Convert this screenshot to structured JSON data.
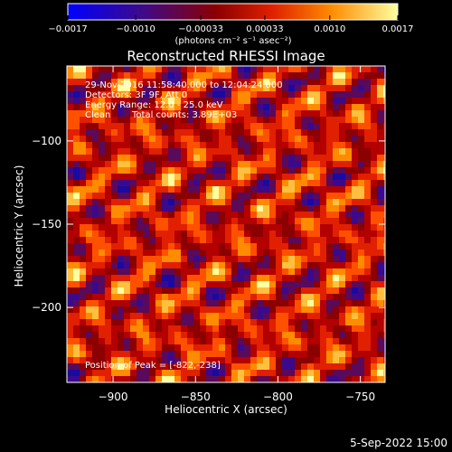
{
  "chart_data": {
    "type": "heatmap",
    "title": "Reconstructed RHESSI Image",
    "xlabel": "Heliocentric X (arcsec)",
    "ylabel": "Heliocentric Y (arcsec)",
    "xlim": [
      -928,
      -735
    ],
    "ylim": [
      -245,
      -55
    ],
    "x_ticks": [
      -900,
      -850,
      -800,
      -750
    ],
    "x_tick_labels": [
      "−900",
      "−850",
      "−800",
      "−750"
    ],
    "y_ticks": [
      -100,
      -150,
      -200
    ],
    "y_tick_labels": [
      "−100",
      "−150",
      "−200"
    ],
    "colorbar": {
      "range": [
        -0.0017,
        0.0017
      ],
      "ticks": [
        -0.0017,
        -0.001,
        -0.00033,
        0.00033,
        0.001,
        0.0017
      ],
      "tick_labels": [
        "−0.0017",
        "−0.0010",
        "−0.00033",
        "0.00033",
        "0.0010",
        "0.0017"
      ],
      "units_label": "(photons cm⁻² s⁻¹ asec⁻²)",
      "colors": [
        "#0000ff",
        "#3b0a8c",
        "#8b0000",
        "#e02000",
        "#ff8c00",
        "#ffffa0"
      ]
    },
    "annotations": [
      "29-Nov-2016 11:58:40.000 to 12:04:24.000",
      "Detectors: 3F 9F, Att 0",
      "Energy Range: 12.0 - 25.0 keV",
      "Clean",
      "Total counts: 3.89E+03"
    ],
    "peak_label": "Position of Peak = [-822,-238]",
    "grid": false
  },
  "footer_date": "5-Sep-2022 15:00"
}
